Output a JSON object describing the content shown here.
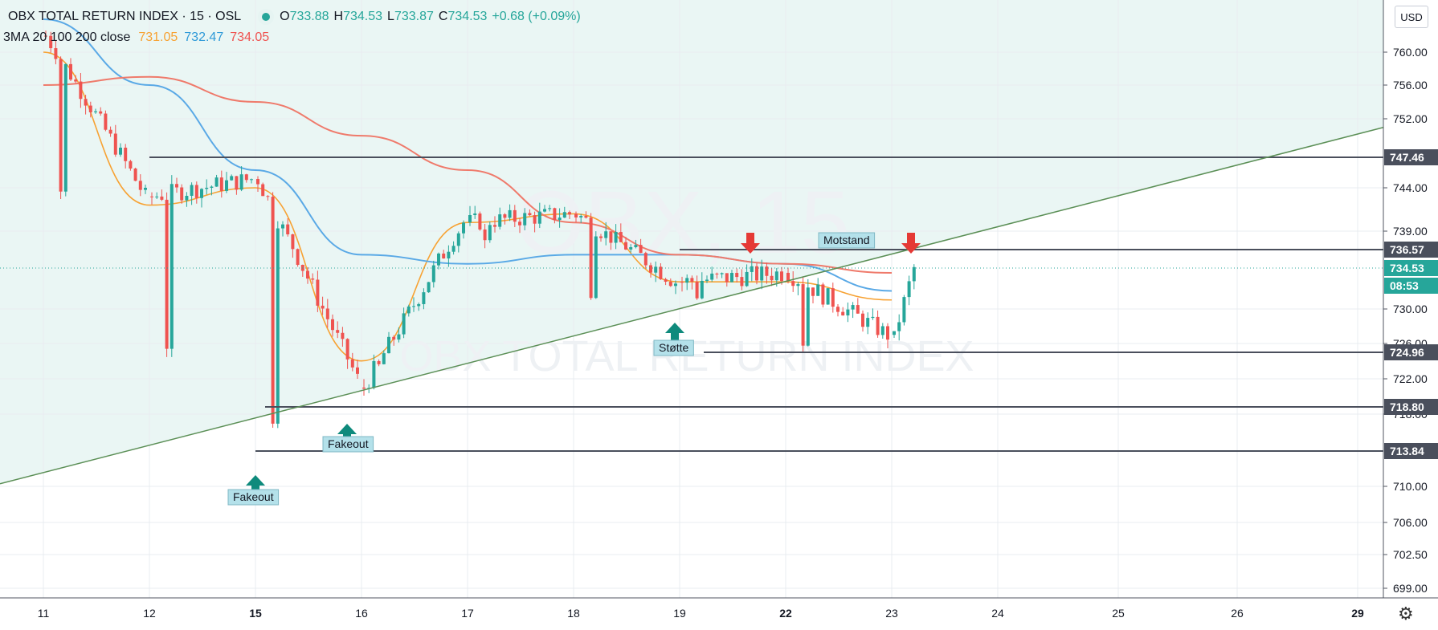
{
  "legend": {
    "symbol": "OBX TOTAL RETURN INDEX · 15 · OSL",
    "open_label": "O",
    "open": "733.88",
    "high_label": "H",
    "high": "734.53",
    "low_label": "L",
    "low": "733.87",
    "close_label": "C",
    "close": "734.53",
    "change": "+0.68 (+0.09%)",
    "ma_name": "3MA 20 100 200 close",
    "ma20": "731.05",
    "ma100": "732.47",
    "ma200": "734.05"
  },
  "currency": "USD",
  "settings_icon": "gear-icon",
  "watermark": {
    "big": "OBX, 15",
    "name": "OBX TOTAL RETURN INDEX"
  },
  "colors": {
    "up": "#26a69a",
    "down": "#ef5350",
    "ma20": "#f7a233",
    "ma100": "#5aa9e6",
    "ma200": "#ef7a6b",
    "trendline": "#5b8f56",
    "level": "#4a4f5c",
    "zone": "#eaf6f4",
    "label_bg": "#b4e1ea",
    "arrow_up": "#0e8a7c",
    "arrow_down": "#e53935"
  },
  "chart_data": {
    "type": "candlestick",
    "x_ticks": [
      "11",
      "12",
      "15",
      "16",
      "17",
      "18",
      "19",
      "22",
      "23",
      "24",
      "25",
      "26",
      "29"
    ],
    "bold_x_ticks": [
      "15",
      "22",
      "29"
    ],
    "y_ticks": [
      "760.00",
      "756.00",
      "752.00",
      "744.00",
      "739.00",
      "730.00",
      "726.00",
      "722.00",
      "718.00",
      "710.00",
      "706.00",
      "702.50",
      "699.00"
    ],
    "price_badges": [
      {
        "value": "747.46",
        "style": "level"
      },
      {
        "value": "736.57",
        "style": "level"
      },
      {
        "value": "734.53",
        "style": "price"
      },
      {
        "value": "08:53",
        "style": "countdown"
      },
      {
        "value": "724.96",
        "style": "level"
      },
      {
        "value": "718.80",
        "style": "level"
      },
      {
        "value": "713.84",
        "style": "level"
      }
    ],
    "horizontal_levels": [
      747.46,
      736.57,
      724.96,
      718.8,
      713.84
    ],
    "current_price": 734.53,
    "trendline": {
      "from": [
        "11",
        711.5
      ],
      "to": [
        "29",
        750.2
      ]
    },
    "annotations": [
      {
        "text": "Motstand",
        "kind": "label"
      },
      {
        "text": "Støtte",
        "kind": "label"
      },
      {
        "text": "Fakeout",
        "kind": "label"
      },
      {
        "text": "Fakeout",
        "kind": "label"
      }
    ],
    "arrows": [
      {
        "direction": "up",
        "x": "15",
        "y": 711.5
      },
      {
        "direction": "up",
        "x": "15 (late)",
        "y": 717.5
      },
      {
        "direction": "up",
        "x": "19",
        "y": 729.0
      },
      {
        "direction": "down",
        "x": "19 (late)",
        "y": 738.5
      },
      {
        "direction": "down",
        "x": "23",
        "y": 738.5
      }
    ],
    "ma_lines": [
      {
        "name": "MA 20",
        "x": [
          "11",
          "12",
          "15",
          "16",
          "17",
          "18",
          "19",
          "22",
          "23"
        ],
        "y": [
          760,
          742,
          744,
          724,
          740,
          741,
          733,
          733,
          731
        ]
      },
      {
        "name": "MA 100",
        "x": [
          "11",
          "12",
          "15",
          "16",
          "17",
          "18",
          "19",
          "22",
          "23"
        ],
        "y": [
          764,
          756,
          746,
          736,
          735,
          736,
          736,
          735,
          732
        ]
      },
      {
        "name": "MA 200",
        "x": [
          "11",
          "12",
          "15",
          "16",
          "17",
          "18",
          "19",
          "22",
          "23"
        ],
        "y": [
          756,
          757,
          754,
          750,
          746,
          740,
          736,
          735,
          734
        ]
      }
    ],
    "ohlc_summary": [
      {
        "day": "11",
        "open": 762,
        "high": 764,
        "low": 741,
        "close": 743
      },
      {
        "day": "12",
        "open": 743,
        "high": 747,
        "low": 723,
        "close": 745
      },
      {
        "day": "15",
        "open": 745,
        "high": 747,
        "low": 713.8,
        "close": 722
      },
      {
        "day": "16",
        "open": 721,
        "high": 747,
        "low": 720,
        "close": 740
      },
      {
        "day": "17",
        "open": 740,
        "high": 747,
        "low": 736,
        "close": 741
      },
      {
        "day": "18",
        "open": 741,
        "high": 742,
        "low": 731,
        "close": 733
      },
      {
        "day": "19",
        "open": 733,
        "high": 737,
        "low": 731,
        "close": 734
      },
      {
        "day": "22",
        "open": 734,
        "high": 736,
        "low": 725,
        "close": 727
      },
      {
        "day": "23",
        "open": 727,
        "high": 737,
        "low": 725,
        "close": 734.5
      }
    ],
    "grid": true
  }
}
